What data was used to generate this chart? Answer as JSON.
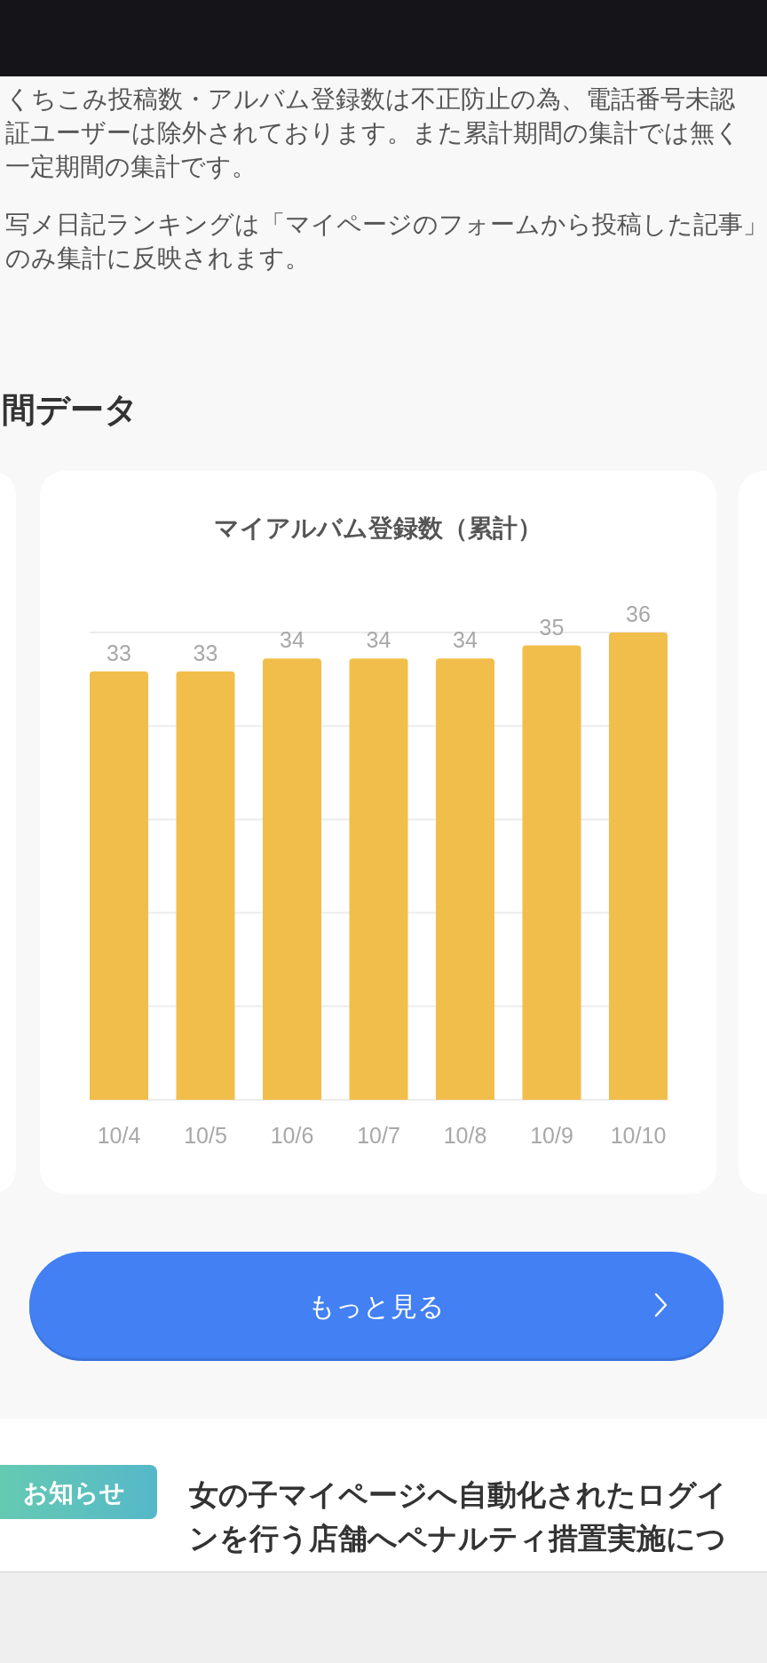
{
  "chart_data": {
    "type": "bar",
    "title": "マイアルバム登録数（累計）",
    "categories": [
      "10/4",
      "10/5",
      "10/6",
      "10/7",
      "10/8",
      "10/9",
      "10/10"
    ],
    "values": [
      33,
      33,
      34,
      34,
      34,
      35,
      36
    ],
    "color": "#f2be4b",
    "data_labels": true,
    "ylim": [
      0,
      36
    ],
    "yticks": [
      {
        "value": 0,
        "label": null
      },
      {
        "value": 7.2,
        "label": null
      },
      {
        "value": 14.4,
        "label": null
      },
      {
        "value": 21.6,
        "label": null
      },
      {
        "value": 28.8,
        "label": null
      },
      {
        "value": 36,
        "label": null
      }
    ],
    "grid": "y",
    "tick_labels": "x",
    "annotations": [
      "くちこみ投稿数・アルバム登録数は不正防止の為、電話番号未認証ユーザーは除外されております。また累計期間の集計では無く一定期間の集計です。",
      "写メ日記ランキングは「マイページのフォームから投稿した記事」のみ集計に反映されます。",
      "間データ",
      "もっと見る",
      "お知らせ",
      "女の子マイページへ自動化されたログインを行う店舗へペナルティ措置実施につ"
    ]
  }
}
